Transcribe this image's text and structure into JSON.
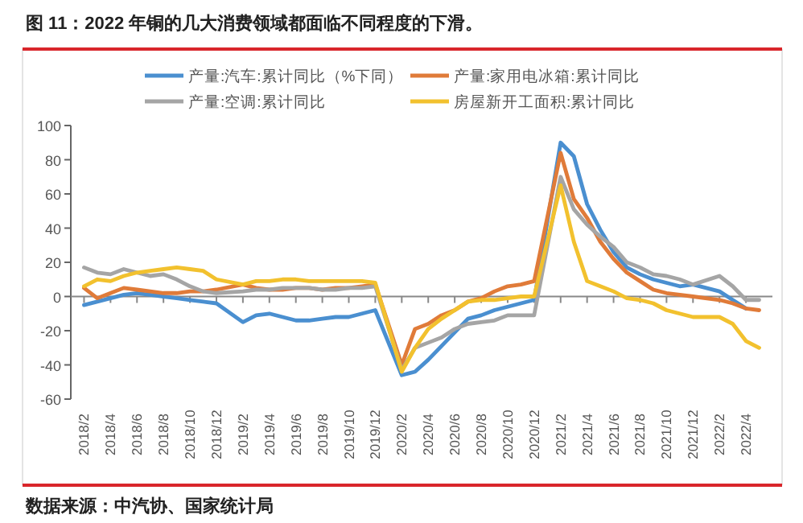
{
  "chart_data": {
    "type": "line",
    "title": "图 11：2022 年铜的几大消费领域都面临不同程度的下滑。",
    "annotations": [
      "数据来源：中汽协、国家统计局"
    ],
    "x": [
      "2018-02",
      "2018-03",
      "2018-04",
      "2018-05",
      "2018-06",
      "2018-07",
      "2018-08",
      "2018-09",
      "2018-10",
      "2018-11",
      "2018-12",
      "2019-02",
      "2019-03",
      "2019-04",
      "2019-05",
      "2019-06",
      "2019-07",
      "2019-08",
      "2019-09",
      "2019-10",
      "2019-11",
      "2019-12",
      "2020-02",
      "2020-03",
      "2020-04",
      "2020-05",
      "2020-06",
      "2020-07",
      "2020-08",
      "2020-09",
      "2020-10",
      "2020-11",
      "2020-12",
      "2021-02",
      "2021-03",
      "2021-04",
      "2021-05",
      "2021-06",
      "2021-07",
      "2021-08",
      "2021-09",
      "2021-10",
      "2021-11",
      "2021-12",
      "2022-02",
      "2022-03",
      "2022-04",
      "2022-05"
    ],
    "series": [
      {
        "name": "产量:汽车:累计同比（%下同）",
        "color": "#4a8fd0",
        "values": [
          -5,
          -3,
          -1,
          1,
          2,
          1,
          0,
          -1,
          -2,
          -3,
          -4,
          -15,
          -11,
          -10,
          -12,
          -14,
          -14,
          -13,
          -12,
          -12,
          -10,
          -8,
          -46,
          -44,
          -37,
          -29,
          -21,
          -13,
          -11,
          -8,
          -6,
          -4,
          -2,
          90,
          82,
          54,
          39,
          26,
          17,
          13,
          10,
          8,
          6,
          7,
          3,
          -2,
          -7,
          null
        ]
      },
      {
        "name": "产量:家用电冰箱:累计同比",
        "color": "#e07b39",
        "values": [
          5,
          -1,
          2,
          5,
          4,
          3,
          2,
          2,
          3,
          3,
          4,
          7,
          5,
          4,
          4,
          5,
          5,
          4,
          5,
          5,
          6,
          7,
          -40,
          -19,
          -16,
          -11,
          -8,
          -3,
          -1,
          3,
          6,
          7,
          9,
          84,
          57,
          46,
          32,
          22,
          14,
          9,
          4,
          2,
          1,
          0,
          -2,
          -4,
          -7,
          -8
        ]
      },
      {
        "name": "产量:空调:累计同比",
        "color": "#a5a5a5",
        "values": [
          17,
          14,
          13,
          16,
          14,
          12,
          13,
          10,
          6,
          3,
          2,
          3,
          4,
          4,
          5,
          5,
          5,
          4,
          4,
          5,
          5,
          6,
          -43,
          -30,
          -27,
          -24,
          -19,
          -16,
          -15,
          -14,
          -11,
          -11,
          -11,
          70,
          51,
          42,
          35,
          29,
          20,
          17,
          13,
          12,
          10,
          7,
          12,
          6,
          -2,
          -2
        ]
      },
      {
        "name": "房屋新开工面积:累计同比",
        "color": "#f2c12e",
        "values": [
          6,
          10,
          9,
          12,
          14,
          15,
          16,
          17,
          16,
          15,
          10,
          7,
          9,
          9,
          10,
          10,
          9,
          9,
          9,
          9,
          9,
          8,
          -44,
          -30,
          -19,
          -13,
          -8,
          -3,
          -2,
          -2,
          -1,
          0,
          0,
          65,
          32,
          9,
          6,
          3,
          -1,
          -2,
          -4,
          -8,
          -10,
          -12,
          -12,
          -16,
          -26,
          -30
        ]
      }
    ],
    "xlim": [
      "2018-01",
      "2022-06"
    ],
    "xticks": [
      {
        "value": "2018-02",
        "label": "2018/2"
      },
      {
        "value": "2018-04",
        "label": "2018/4"
      },
      {
        "value": "2018-06",
        "label": "2018/6"
      },
      {
        "value": "2018-08",
        "label": "2018/8"
      },
      {
        "value": "2018-10",
        "label": "2018/10"
      },
      {
        "value": "2018-12",
        "label": "2018/12"
      },
      {
        "value": "2019-02",
        "label": "2019/2"
      },
      {
        "value": "2019-04",
        "label": "2019/4"
      },
      {
        "value": "2019-06",
        "label": "2019/6"
      },
      {
        "value": "2019-08",
        "label": "2019/8"
      },
      {
        "value": "2019-10",
        "label": "2019/10"
      },
      {
        "value": "2019-12",
        "label": "2019/12"
      },
      {
        "value": "2020-02",
        "label": "2020/2"
      },
      {
        "value": "2020-04",
        "label": "2020/4"
      },
      {
        "value": "2020-06",
        "label": "2020/6"
      },
      {
        "value": "2020-08",
        "label": "2020/8"
      },
      {
        "value": "2020-10",
        "label": "2020/10"
      },
      {
        "value": "2020-12",
        "label": "2020/12"
      },
      {
        "value": "2021-02",
        "label": "2021/2"
      },
      {
        "value": "2021-04",
        "label": "2021/4"
      },
      {
        "value": "2021-06",
        "label": "2021/6"
      },
      {
        "value": "2021-08",
        "label": "2021/8"
      },
      {
        "value": "2021-10",
        "label": "2021/10"
      },
      {
        "value": "2021-12",
        "label": "2021/12"
      },
      {
        "value": "2022-02",
        "label": "2022/2"
      },
      {
        "value": "2022-04",
        "label": "2022/4"
      }
    ],
    "ylim": [
      -60,
      100
    ],
    "yticks": [
      -60,
      -40,
      -20,
      0,
      20,
      40,
      60,
      80,
      100
    ],
    "legend": "top",
    "marker": "none",
    "line_style": "solid"
  }
}
